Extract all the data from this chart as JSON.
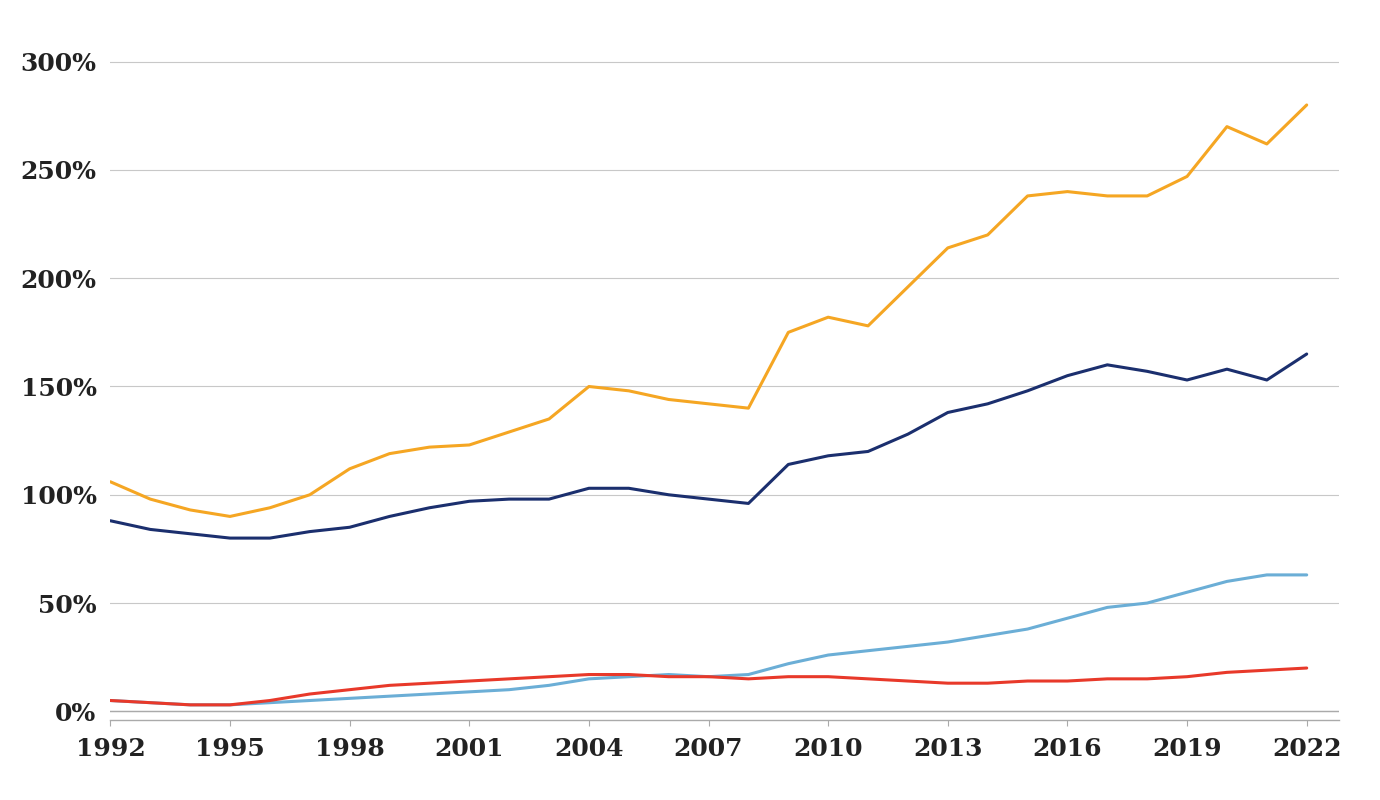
{
  "background_color": "#ffffff",
  "grid_color": "#c8c8c8",
  "xlim": [
    1992,
    2022.8
  ],
  "ylim": [
    -4,
    310
  ],
  "yticks": [
    0,
    50,
    100,
    150,
    200,
    250,
    300
  ],
  "ytick_labels": [
    "0%",
    "50%",
    "100%",
    "150%",
    "200%",
    "250%",
    "300%"
  ],
  "xticks": [
    1992,
    1995,
    1998,
    2001,
    2004,
    2007,
    2010,
    2013,
    2016,
    2019,
    2022
  ],
  "series": {
    "yellow": {
      "color": "#F5A623",
      "linewidth": 2.2,
      "years": [
        1992,
        1993,
        1994,
        1995,
        1996,
        1997,
        1998,
        1999,
        2000,
        2001,
        2002,
        2003,
        2004,
        2005,
        2006,
        2007,
        2008,
        2009,
        2010,
        2011,
        2012,
        2013,
        2014,
        2015,
        2016,
        2017,
        2018,
        2019,
        2020,
        2021,
        2022
      ],
      "values": [
        106,
        98,
        93,
        90,
        94,
        100,
        112,
        119,
        122,
        123,
        129,
        135,
        150,
        148,
        144,
        142,
        140,
        175,
        182,
        178,
        196,
        214,
        220,
        238,
        240,
        238,
        238,
        247,
        270,
        262,
        280
      ]
    },
    "navy": {
      "color": "#1B2F6E",
      "linewidth": 2.2,
      "years": [
        1992,
        1993,
        1994,
        1995,
        1996,
        1997,
        1998,
        1999,
        2000,
        2001,
        2002,
        2003,
        2004,
        2005,
        2006,
        2007,
        2008,
        2009,
        2010,
        2011,
        2012,
        2013,
        2014,
        2015,
        2016,
        2017,
        2018,
        2019,
        2020,
        2021,
        2022
      ],
      "values": [
        88,
        84,
        82,
        80,
        80,
        83,
        85,
        90,
        94,
        97,
        98,
        98,
        103,
        103,
        100,
        98,
        96,
        114,
        118,
        120,
        128,
        138,
        142,
        148,
        155,
        160,
        157,
        153,
        158,
        153,
        165
      ]
    },
    "light_blue": {
      "color": "#6BAED6",
      "linewidth": 2.2,
      "years": [
        1992,
        1993,
        1994,
        1995,
        1996,
        1997,
        1998,
        1999,
        2000,
        2001,
        2002,
        2003,
        2004,
        2005,
        2006,
        2007,
        2008,
        2009,
        2010,
        2011,
        2012,
        2013,
        2014,
        2015,
        2016,
        2017,
        2018,
        2019,
        2020,
        2021,
        2022
      ],
      "values": [
        5,
        4,
        3,
        3,
        4,
        5,
        6,
        7,
        8,
        9,
        10,
        12,
        15,
        16,
        17,
        16,
        17,
        22,
        26,
        28,
        30,
        32,
        35,
        38,
        43,
        48,
        50,
        55,
        60,
        63,
        63
      ]
    },
    "red": {
      "color": "#E8392A",
      "linewidth": 2.2,
      "years": [
        1992,
        1993,
        1994,
        1995,
        1996,
        1997,
        1998,
        1999,
        2000,
        2001,
        2002,
        2003,
        2004,
        2005,
        2006,
        2007,
        2008,
        2009,
        2010,
        2011,
        2012,
        2013,
        2014,
        2015,
        2016,
        2017,
        2018,
        2019,
        2020,
        2021,
        2022
      ],
      "values": [
        5,
        4,
        3,
        3,
        5,
        8,
        10,
        12,
        13,
        14,
        15,
        16,
        17,
        17,
        16,
        16,
        15,
        16,
        16,
        15,
        14,
        13,
        13,
        14,
        14,
        15,
        15,
        16,
        18,
        19,
        20
      ]
    }
  }
}
